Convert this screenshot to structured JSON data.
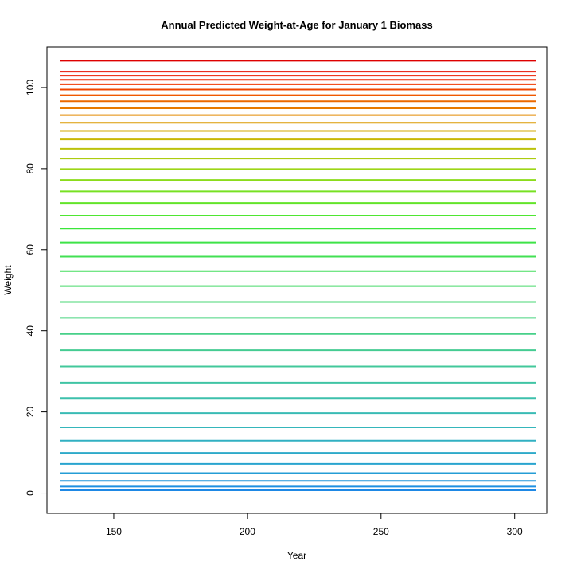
{
  "chart_data": {
    "type": "line",
    "title": "Annual Predicted Weight-at-Age for January 1 Biomass",
    "xlabel": "Year",
    "ylabel": "Weight",
    "xlim": [
      125,
      312
    ],
    "ylim": [
      -5,
      110
    ],
    "x_ticks": [
      150,
      200,
      250,
      300
    ],
    "y_ticks": [
      0,
      20,
      40,
      60,
      80,
      100
    ],
    "x_range": [
      130,
      308
    ],
    "grid": false,
    "legend": "none",
    "series": [
      {
        "values": [
          0.7,
          0.7
        ],
        "color": "#1E88E5"
      },
      {
        "values": [
          1.6,
          1.6
        ],
        "color": "#1E8FE0"
      },
      {
        "values": [
          3.0,
          3.0
        ],
        "color": "#2196DB"
      },
      {
        "values": [
          4.9,
          4.9
        ],
        "color": "#259DD5"
      },
      {
        "values": [
          7.2,
          7.2
        ],
        "color": "#29A4CF"
      },
      {
        "values": [
          9.9,
          9.9
        ],
        "color": "#2DAAC9"
      },
      {
        "values": [
          12.9,
          12.9
        ],
        "color": "#31B0C2"
      },
      {
        "values": [
          16.2,
          16.2
        ],
        "color": "#35B6BB"
      },
      {
        "values": [
          19.7,
          19.7
        ],
        "color": "#39BBB4"
      },
      {
        "values": [
          23.4,
          23.4
        ],
        "color": "#3DC0AC"
      },
      {
        "values": [
          27.2,
          27.2
        ],
        "color": "#40C4A4"
      },
      {
        "values": [
          31.2,
          31.2
        ],
        "color": "#43C89B"
      },
      {
        "values": [
          35.2,
          35.2
        ],
        "color": "#45CC92"
      },
      {
        "values": [
          39.2,
          39.2
        ],
        "color": "#47D089"
      },
      {
        "values": [
          43.2,
          43.2
        ],
        "color": "#48D47F"
      },
      {
        "values": [
          47.1,
          47.1
        ],
        "color": "#48D775"
      },
      {
        "values": [
          51.0,
          51.0
        ],
        "color": "#47DA6A"
      },
      {
        "values": [
          54.7,
          54.7
        ],
        "color": "#45DD5F"
      },
      {
        "values": [
          58.3,
          58.3
        ],
        "color": "#42E053"
      },
      {
        "values": [
          61.8,
          61.8
        ],
        "color": "#3EE347"
      },
      {
        "values": [
          65.2,
          65.2
        ],
        "color": "#3BE63A"
      },
      {
        "values": [
          68.4,
          68.4
        ],
        "color": "#4FE632"
      },
      {
        "values": [
          71.5,
          71.5
        ],
        "color": "#63E42A"
      },
      {
        "values": [
          74.4,
          74.4
        ],
        "color": "#77E123"
      },
      {
        "values": [
          77.2,
          77.2
        ],
        "color": "#8BDC1C"
      },
      {
        "values": [
          79.9,
          79.9
        ],
        "color": "#9CD516"
      },
      {
        "values": [
          82.5,
          82.5
        ],
        "color": "#ACCC10"
      },
      {
        "values": [
          84.9,
          84.9
        ],
        "color": "#BBC20B"
      },
      {
        "values": [
          87.2,
          87.2
        ],
        "color": "#C8B706"
      },
      {
        "values": [
          89.3,
          89.3
        ],
        "color": "#D3A903"
      },
      {
        "values": [
          91.3,
          91.3
        ],
        "color": "#DC9A01"
      },
      {
        "values": [
          93.2,
          93.2
        ],
        "color": "#E38A00"
      },
      {
        "values": [
          94.9,
          94.9
        ],
        "color": "#E87A00"
      },
      {
        "values": [
          96.6,
          96.6
        ],
        "color": "#EC6900"
      },
      {
        "values": [
          98.1,
          98.1
        ],
        "color": "#EF5800"
      },
      {
        "values": [
          99.5,
          99.5
        ],
        "color": "#F04700"
      },
      {
        "values": [
          100.8,
          100.8
        ],
        "color": "#F03800"
      },
      {
        "values": [
          101.9,
          101.9
        ],
        "color": "#EE2A00"
      },
      {
        "values": [
          102.9,
          102.9
        ],
        "color": "#EB1E00"
      },
      {
        "values": [
          103.9,
          103.9
        ],
        "color": "#E71300"
      },
      {
        "values": [
          106.6,
          106.6
        ],
        "color": "#DE0000"
      }
    ]
  }
}
